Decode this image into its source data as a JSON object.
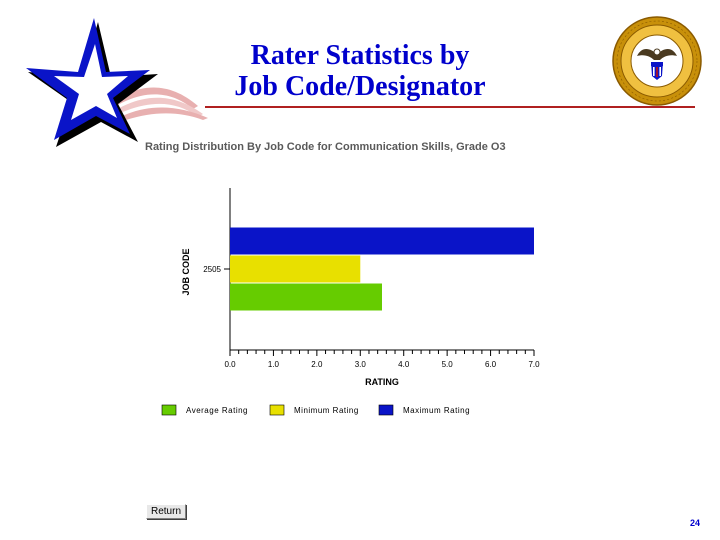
{
  "slide": {
    "title_line1": "Rater Statistics by",
    "title_line2": "Job Code/Designator",
    "page_number": "24",
    "return_label": "Return",
    "title_color": "#0000cc",
    "accent_color": "#b02020"
  },
  "logos": [
    "star-logo",
    "navy-personnel-command-seal"
  ],
  "chart_data": {
    "type": "bar",
    "orientation": "horizontal",
    "title": "Rating Distribution By Job Code for Communication Skills, Grade O3",
    "xlabel": "RATING",
    "ylabel": "JOB CODE",
    "categories": [
      "2505"
    ],
    "series": [
      {
        "name": "Average Rating",
        "color": "#66cc00",
        "values": [
          3.5
        ]
      },
      {
        "name": "Minimum Rating",
        "color": "#e8e000",
        "values": [
          3.0
        ]
      },
      {
        "name": "Maximum Rating",
        "color": "#0a14c8",
        "values": [
          7.0
        ]
      }
    ],
    "xlim": [
      0,
      7
    ],
    "xticks": [
      "0.0",
      "1.0",
      "2.0",
      "3.0",
      "4.0",
      "5.0",
      "6.0",
      "7.0"
    ],
    "grid": false,
    "legend_position": "bottom"
  }
}
